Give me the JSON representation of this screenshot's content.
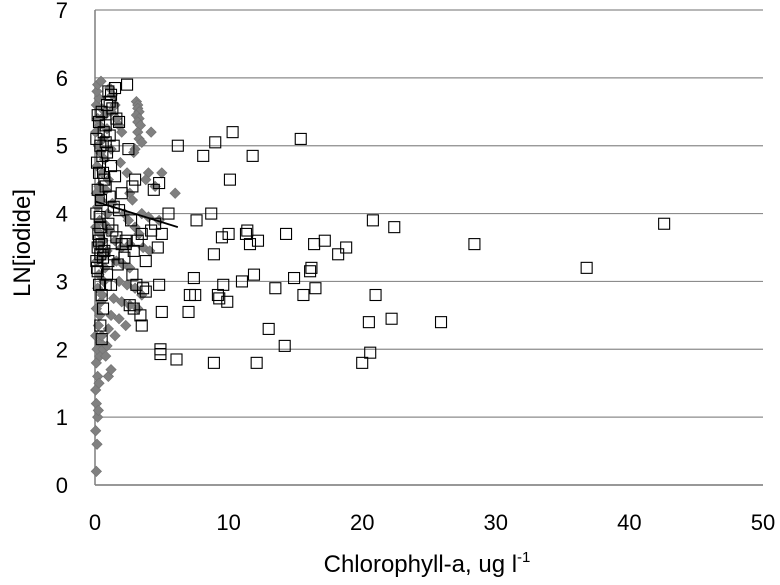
{
  "chart_data": {
    "type": "scatter",
    "xlabel": "Chlorophyll-a, ug l",
    "xlabel_superscript": "-1",
    "ylabel": "LN[iodide]",
    "xlim": [
      0,
      50
    ],
    "ylim": [
      0,
      7
    ],
    "x_ticks": [
      "0",
      "10",
      "20",
      "30",
      "40",
      "50"
    ],
    "y_ticks": [
      "0",
      "1",
      "2",
      "3",
      "4",
      "5",
      "6",
      "7"
    ],
    "grid": "horizontal",
    "legend": "none",
    "colors": {
      "gridline": "#8c8c8c",
      "axis": "#7f7f7f",
      "diamond_fill": "#808080",
      "square_stroke": "#000000",
      "trend": "#000000"
    },
    "series": [
      {
        "marker": "diamond",
        "points": [
          [
            0.1,
            0.2
          ],
          [
            0.15,
            0.6
          ],
          [
            0.05,
            0.8
          ],
          [
            0.2,
            1.0
          ],
          [
            0.1,
            1.2
          ],
          [
            0.25,
            1.1
          ],
          [
            0.05,
            1.4
          ],
          [
            0.2,
            1.6
          ],
          [
            0.3,
            1.5
          ],
          [
            0.1,
            1.8
          ],
          [
            0.35,
            1.9
          ],
          [
            0.15,
            2.0
          ],
          [
            0.4,
            2.1
          ],
          [
            0.05,
            2.2
          ],
          [
            0.5,
            2.2
          ],
          [
            0.6,
            2.0
          ],
          [
            1.0,
            1.6
          ],
          [
            1.2,
            1.7
          ],
          [
            0.8,
            1.9
          ],
          [
            0.25,
            2.35
          ],
          [
            0.35,
            2.5
          ],
          [
            0.1,
            2.6
          ],
          [
            0.45,
            2.7
          ],
          [
            0.55,
            2.8
          ],
          [
            0.2,
            2.9
          ],
          [
            0.65,
            3.0
          ],
          [
            0.3,
            3.1
          ],
          [
            0.75,
            3.2
          ],
          [
            0.15,
            3.3
          ],
          [
            0.5,
            3.35
          ],
          [
            0.9,
            3.45
          ],
          [
            0.25,
            3.5
          ],
          [
            0.6,
            3.6
          ],
          [
            0.4,
            3.7
          ],
          [
            1.1,
            3.75
          ],
          [
            0.05,
            3.8
          ],
          [
            0.7,
            3.85
          ],
          [
            0.35,
            3.9
          ],
          [
            0.95,
            4.0
          ],
          [
            0.2,
            4.1
          ],
          [
            1.3,
            4.15
          ],
          [
            0.45,
            4.2
          ],
          [
            0.1,
            4.3
          ],
          [
            0.8,
            4.35
          ],
          [
            0.3,
            4.4
          ],
          [
            1.0,
            4.5
          ],
          [
            0.55,
            4.6
          ],
          [
            0.15,
            4.7
          ],
          [
            0.7,
            4.8
          ],
          [
            0.4,
            4.9
          ],
          [
            1.2,
            4.95
          ],
          [
            0.25,
            5.0
          ],
          [
            0.6,
            5.1
          ],
          [
            0.05,
            5.2
          ],
          [
            0.9,
            5.25
          ],
          [
            0.35,
            5.3
          ],
          [
            0.2,
            5.4
          ],
          [
            0.75,
            5.45
          ],
          [
            0.5,
            5.55
          ],
          [
            0.1,
            5.6
          ],
          [
            0.3,
            5.7
          ],
          [
            0.15,
            5.8
          ],
          [
            0.2,
            5.9
          ],
          [
            0.45,
            5.95
          ],
          [
            1.1,
            5.85
          ],
          [
            1.3,
            5.75
          ],
          [
            1.5,
            5.6
          ],
          [
            1.2,
            5.5
          ],
          [
            1.6,
            5.4
          ],
          [
            1.8,
            5.3
          ],
          [
            2.0,
            5.2
          ],
          [
            3.1,
            5.65
          ],
          [
            3.2,
            5.6
          ],
          [
            3.2,
            5.55
          ],
          [
            3.3,
            5.5
          ],
          [
            3.1,
            5.45
          ],
          [
            3.3,
            5.4
          ],
          [
            3.2,
            5.35
          ],
          [
            3.4,
            5.3
          ],
          [
            3.2,
            5.2
          ],
          [
            3.3,
            5.1
          ],
          [
            3.5,
            5.05
          ],
          [
            3.0,
            4.95
          ],
          [
            4.2,
            5.2
          ],
          [
            4.0,
            4.6
          ],
          [
            3.8,
            4.5
          ],
          [
            4.5,
            4.4
          ],
          [
            2.6,
            4.3
          ],
          [
            2.8,
            4.2
          ],
          [
            3.5,
            4.0
          ],
          [
            4.0,
            3.95
          ],
          [
            4.8,
            3.9
          ],
          [
            2.4,
            4.6
          ],
          [
            1.9,
            4.75
          ],
          [
            2.2,
            4.0
          ],
          [
            2.5,
            3.9
          ],
          [
            3.0,
            3.8
          ],
          [
            3.3,
            3.7
          ],
          [
            1.5,
            3.6
          ],
          [
            2.0,
            3.5
          ],
          [
            2.6,
            3.55
          ],
          [
            3.6,
            3.5
          ],
          [
            4.1,
            3.45
          ],
          [
            1.6,
            3.3
          ],
          [
            2.1,
            3.25
          ],
          [
            2.6,
            3.2
          ],
          [
            1.8,
            3.0
          ],
          [
            2.4,
            2.95
          ],
          [
            3.0,
            2.9
          ],
          [
            3.5,
            2.8
          ],
          [
            1.4,
            2.75
          ],
          [
            2.0,
            2.7
          ],
          [
            2.6,
            2.65
          ],
          [
            3.2,
            2.6
          ],
          [
            1.2,
            2.5
          ],
          [
            1.8,
            2.45
          ],
          [
            1.0,
            2.3
          ],
          [
            1.5,
            2.2
          ],
          [
            2.3,
            2.35
          ],
          [
            0.9,
            2.05
          ],
          [
            5.0,
            4.6
          ],
          [
            6.0,
            4.3
          ],
          [
            2.9,
            4.9
          ]
        ]
      },
      {
        "marker": "square",
        "points": [
          [
            0.1,
            3.3
          ],
          [
            0.2,
            3.5
          ],
          [
            0.3,
            3.6
          ],
          [
            0.15,
            3.2
          ],
          [
            0.4,
            3.4
          ],
          [
            0.5,
            3.55
          ],
          [
            0.25,
            3.7
          ],
          [
            0.6,
            3.35
          ],
          [
            0.35,
            3.95
          ],
          [
            0.1,
            4.0
          ],
          [
            0.45,
            4.2
          ],
          [
            0.2,
            4.35
          ],
          [
            0.7,
            4.5
          ],
          [
            0.3,
            4.6
          ],
          [
            0.15,
            4.75
          ],
          [
            0.55,
            4.85
          ],
          [
            0.4,
            5.0
          ],
          [
            0.1,
            5.1
          ],
          [
            0.65,
            5.2
          ],
          [
            0.3,
            5.35
          ],
          [
            0.2,
            5.45
          ],
          [
            0.5,
            5.5
          ],
          [
            0.8,
            5.3
          ],
          [
            0.9,
            5.6
          ],
          [
            1.0,
            5.8
          ],
          [
            1.2,
            5.75
          ],
          [
            1.5,
            5.85
          ],
          [
            2.4,
            5.9
          ],
          [
            1.3,
            5.55
          ],
          [
            1.6,
            5.4
          ],
          [
            1.8,
            5.35
          ],
          [
            1.1,
            5.15
          ],
          [
            1.4,
            5.0
          ],
          [
            0.9,
            4.9
          ],
          [
            1.2,
            4.7
          ],
          [
            1.5,
            4.55
          ],
          [
            0.8,
            4.4
          ],
          [
            1.1,
            4.25
          ],
          [
            1.4,
            4.1
          ],
          [
            1.8,
            4.05
          ],
          [
            1.0,
            3.85
          ],
          [
            1.3,
            3.75
          ],
          [
            1.6,
            3.65
          ],
          [
            2.0,
            3.55
          ],
          [
            2.3,
            3.6
          ],
          [
            0.7,
            3.45
          ],
          [
            1.0,
            3.3
          ],
          [
            1.4,
            3.4
          ],
          [
            1.7,
            3.25
          ],
          [
            2.2,
            3.35
          ],
          [
            0.9,
            3.1
          ],
          [
            1.2,
            2.95
          ],
          [
            0.5,
            2.8
          ],
          [
            0.6,
            2.6
          ],
          [
            0.4,
            2.35
          ],
          [
            0.5,
            2.15
          ],
          [
            0.8,
            2.95
          ],
          [
            2.0,
            4.3
          ],
          [
            2.5,
            4.95
          ],
          [
            2.8,
            4.4
          ],
          [
            3.0,
            4.5
          ],
          [
            2.7,
            3.9
          ],
          [
            3.2,
            3.6
          ],
          [
            2.9,
            3.45
          ],
          [
            3.5,
            3.7
          ],
          [
            3.8,
            3.3
          ],
          [
            2.8,
            3.1
          ],
          [
            3.1,
            2.95
          ],
          [
            3.6,
            2.9
          ],
          [
            2.6,
            2.65
          ],
          [
            2.9,
            2.6
          ],
          [
            3.4,
            2.5
          ],
          [
            3.5,
            2.35
          ],
          [
            3.8,
            2.85
          ],
          [
            4.2,
            3.75
          ],
          [
            4.5,
            3.85
          ],
          [
            4.7,
            3.5
          ],
          [
            4.4,
            4.35
          ],
          [
            4.8,
            4.45
          ],
          [
            5.0,
            3.7
          ],
          [
            5.5,
            4.0
          ],
          [
            6.2,
            5.0
          ],
          [
            4.8,
            2.95
          ],
          [
            5.0,
            2.55
          ],
          [
            4.9,
            2.0
          ],
          [
            4.9,
            1.93
          ],
          [
            6.1,
            1.85
          ],
          [
            7.0,
            2.55
          ],
          [
            7.1,
            2.8
          ],
          [
            7.5,
            2.8
          ],
          [
            7.4,
            3.05
          ],
          [
            7.6,
            3.9
          ],
          [
            8.1,
            4.85
          ],
          [
            8.7,
            4.0
          ],
          [
            8.9,
            3.4
          ],
          [
            9.0,
            5.05
          ],
          [
            9.5,
            3.65
          ],
          [
            9.2,
            2.8
          ],
          [
            9.3,
            2.75
          ],
          [
            9.6,
            2.95
          ],
          [
            9.9,
            2.7
          ],
          [
            10.0,
            3.7
          ],
          [
            10.1,
            4.5
          ],
          [
            10.3,
            5.2
          ],
          [
            11.0,
            3.0
          ],
          [
            11.3,
            3.7
          ],
          [
            11.4,
            3.75
          ],
          [
            11.6,
            3.55
          ],
          [
            11.8,
            4.85
          ],
          [
            11.9,
            3.1
          ],
          [
            12.2,
            3.6
          ],
          [
            13.0,
            2.3
          ],
          [
            13.5,
            2.9
          ],
          [
            14.3,
            3.7
          ],
          [
            14.9,
            3.05
          ],
          [
            15.4,
            5.1
          ],
          [
            15.6,
            2.8
          ],
          [
            16.1,
            3.15
          ],
          [
            16.2,
            3.2
          ],
          [
            16.4,
            3.55
          ],
          [
            16.5,
            2.9
          ],
          [
            17.2,
            3.6
          ],
          [
            18.2,
            3.4
          ],
          [
            18.8,
            3.5
          ],
          [
            20.0,
            1.8
          ],
          [
            20.5,
            2.4
          ],
          [
            20.6,
            1.95
          ],
          [
            20.8,
            3.9
          ],
          [
            21.0,
            2.8
          ],
          [
            22.2,
            2.45
          ],
          [
            22.4,
            3.8
          ],
          [
            25.9,
            2.4
          ],
          [
            28.4,
            3.55
          ],
          [
            36.8,
            3.2
          ],
          [
            42.6,
            3.85
          ],
          [
            8.9,
            1.8
          ],
          [
            12.1,
            1.8
          ],
          [
            14.2,
            2.05
          ],
          [
            2.3,
            3.55
          ],
          [
            0.2,
            3.15
          ],
          [
            0.3,
            2.95
          ],
          [
            0.6,
            4.6
          ],
          [
            0.8,
            5.05
          ],
          [
            1.1,
            5.65
          ],
          [
            0.4,
            3.8
          ]
        ]
      }
    ],
    "trendline": {
      "from": [
        0.0,
        4.18
      ],
      "to": [
        6.2,
        3.8
      ]
    }
  }
}
